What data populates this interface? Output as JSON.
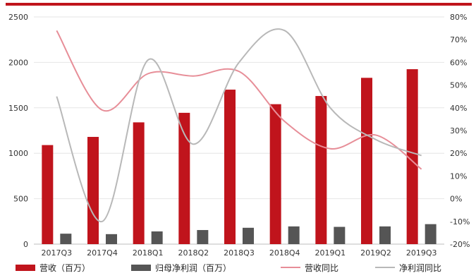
{
  "chart_data": {
    "type": "bar",
    "categories": [
      "2017Q3",
      "2017Q4",
      "2018Q1",
      "2018Q2",
      "2018Q3",
      "2018Q4",
      "2019Q1",
      "2019Q2",
      "2019Q3"
    ],
    "series": [
      {
        "name": "营收（百万）",
        "kind": "bar",
        "axis": "left",
        "color": "#c0141c",
        "values": [
          1090,
          1180,
          1340,
          1445,
          1700,
          1540,
          1630,
          1830,
          1925
        ]
      },
      {
        "name": "归母净利润（百万）",
        "kind": "bar",
        "axis": "left",
        "color": "#555555",
        "values": [
          115,
          110,
          140,
          155,
          180,
          195,
          190,
          195,
          220
        ]
      },
      {
        "name": "营收同比",
        "kind": "line",
        "axis": "right",
        "color": "#e78e98",
        "values": [
          74,
          39,
          55,
          54,
          56,
          34,
          22,
          28,
          13
        ]
      },
      {
        "name": "净利润同比",
        "kind": "line",
        "axis": "right",
        "color": "#b8b8b8",
        "values": [
          45,
          -10,
          61,
          24,
          60,
          74,
          40,
          26,
          19
        ]
      }
    ],
    "left_axis": {
      "ylim": [
        0,
        2500
      ],
      "ticks": [
        "0",
        "500",
        "1000",
        "1500",
        "2000",
        "2500"
      ]
    },
    "right_axis": {
      "ylim": [
        -20,
        80
      ],
      "ticks": [
        "-20%",
        "-10%",
        "0%",
        "10%",
        "20%",
        "30%",
        "40%",
        "50%",
        "60%",
        "70%",
        "80%"
      ]
    },
    "grid": true,
    "legend_position": "bottom"
  },
  "legend": {
    "items": [
      {
        "label": "营收（百万）",
        "type": "bar",
        "color": "#c0141c"
      },
      {
        "label": "归母净利润（百万）",
        "type": "bar",
        "color": "#555555"
      },
      {
        "label": "营收同比",
        "type": "line",
        "color": "#e78e98"
      },
      {
        "label": "净利润同比",
        "type": "line",
        "color": "#b8b8b8"
      }
    ]
  }
}
